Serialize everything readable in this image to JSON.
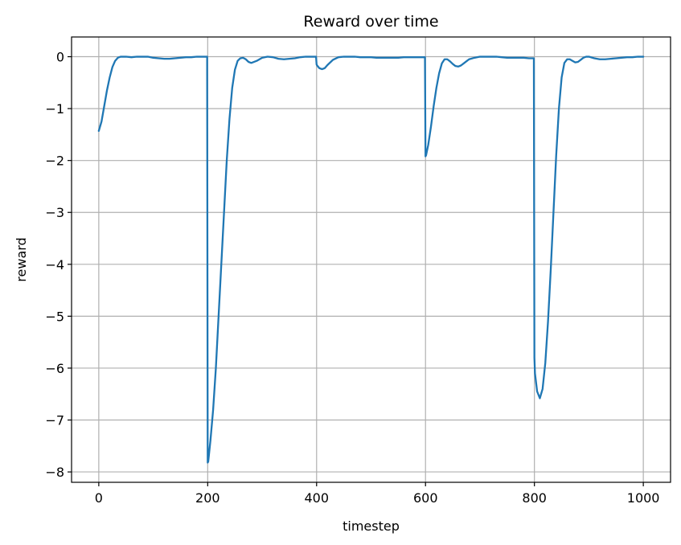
{
  "chart_data": {
    "type": "line",
    "title": "Reward over time",
    "xlabel": "timestep",
    "ylabel": "reward",
    "xlim": [
      -50,
      1050
    ],
    "ylim": [
      -8.2,
      0.38
    ],
    "xticks": [
      0,
      200,
      400,
      600,
      800,
      1000
    ],
    "yticks": [
      0,
      -1,
      -2,
      -3,
      -4,
      -5,
      -6,
      -7,
      -8
    ],
    "xtick_labels": [
      "0",
      "200",
      "400",
      "600",
      "800",
      "1000"
    ],
    "ytick_labels": [
      "0",
      "−1",
      "−2",
      "−3",
      "−4",
      "−5",
      "−6",
      "−7",
      "−8"
    ],
    "grid": true,
    "line_color": "#1f77b4",
    "series": [
      {
        "x": [
          0,
          5,
          10,
          15,
          20,
          25,
          30,
          35,
          40,
          45,
          50,
          60,
          70,
          80,
          90,
          100,
          110,
          120,
          130,
          140,
          150,
          160,
          170,
          180,
          190,
          199,
          200,
          201,
          205,
          210,
          215,
          220,
          225,
          230,
          235,
          240,
          245,
          250,
          255,
          260,
          265,
          270,
          275,
          280,
          290,
          300,
          310,
          320,
          330,
          340,
          350,
          360,
          370,
          380,
          390,
          399,
          400,
          401,
          405,
          410,
          415,
          420,
          430,
          440,
          450,
          460,
          470,
          480,
          490,
          500,
          510,
          520,
          530,
          540,
          550,
          560,
          570,
          580,
          590,
          599,
          600,
          601,
          605,
          610,
          615,
          620,
          625,
          630,
          635,
          640,
          645,
          650,
          655,
          660,
          665,
          670,
          675,
          680,
          690,
          700,
          710,
          720,
          730,
          740,
          750,
          760,
          770,
          780,
          790,
          799,
          800,
          801,
          805,
          810,
          815,
          820,
          825,
          830,
          835,
          840,
          845,
          850,
          855,
          860,
          865,
          870,
          875,
          880,
          885,
          890,
          895,
          900,
          910,
          920,
          930,
          940,
          950,
          960,
          970,
          980,
          990,
          1000
        ],
        "y": [
          -1.43,
          -1.25,
          -0.95,
          -0.65,
          -0.4,
          -0.2,
          -0.08,
          -0.02,
          0.0,
          0.0,
          0.0,
          -0.01,
          0.0,
          0.0,
          0.0,
          -0.02,
          -0.03,
          -0.04,
          -0.04,
          -0.03,
          -0.02,
          -0.01,
          -0.01,
          0.0,
          0.0,
          0.0,
          -7.82,
          -7.8,
          -7.4,
          -6.8,
          -6.0,
          -5.0,
          -4.0,
          -3.0,
          -2.0,
          -1.2,
          -0.6,
          -0.25,
          -0.08,
          -0.03,
          -0.02,
          -0.05,
          -0.1,
          -0.12,
          -0.08,
          -0.02,
          0.0,
          -0.01,
          -0.04,
          -0.05,
          -0.04,
          -0.03,
          -0.01,
          0.0,
          0.0,
          0.0,
          -0.15,
          -0.17,
          -0.22,
          -0.24,
          -0.22,
          -0.16,
          -0.06,
          -0.01,
          0.0,
          0.0,
          0.0,
          -0.01,
          -0.01,
          -0.01,
          -0.02,
          -0.02,
          -0.02,
          -0.02,
          -0.02,
          -0.01,
          -0.01,
          -0.01,
          -0.01,
          -0.01,
          -1.92,
          -1.9,
          -1.7,
          -1.35,
          -0.95,
          -0.6,
          -0.32,
          -0.13,
          -0.05,
          -0.05,
          -0.09,
          -0.14,
          -0.18,
          -0.19,
          -0.17,
          -0.13,
          -0.09,
          -0.05,
          -0.02,
          0.0,
          0.0,
          0.0,
          0.0,
          -0.01,
          -0.02,
          -0.02,
          -0.02,
          -0.02,
          -0.03,
          -0.03,
          -5.8,
          -6.1,
          -6.45,
          -6.58,
          -6.4,
          -5.9,
          -5.1,
          -4.1,
          -3.0,
          -1.9,
          -1.0,
          -0.4,
          -0.12,
          -0.05,
          -0.05,
          -0.08,
          -0.11,
          -0.1,
          -0.06,
          -0.02,
          0.0,
          0.0,
          -0.03,
          -0.05,
          -0.05,
          -0.04,
          -0.03,
          -0.02,
          -0.01,
          -0.01,
          0.0,
          0.0
        ]
      }
    ]
  }
}
